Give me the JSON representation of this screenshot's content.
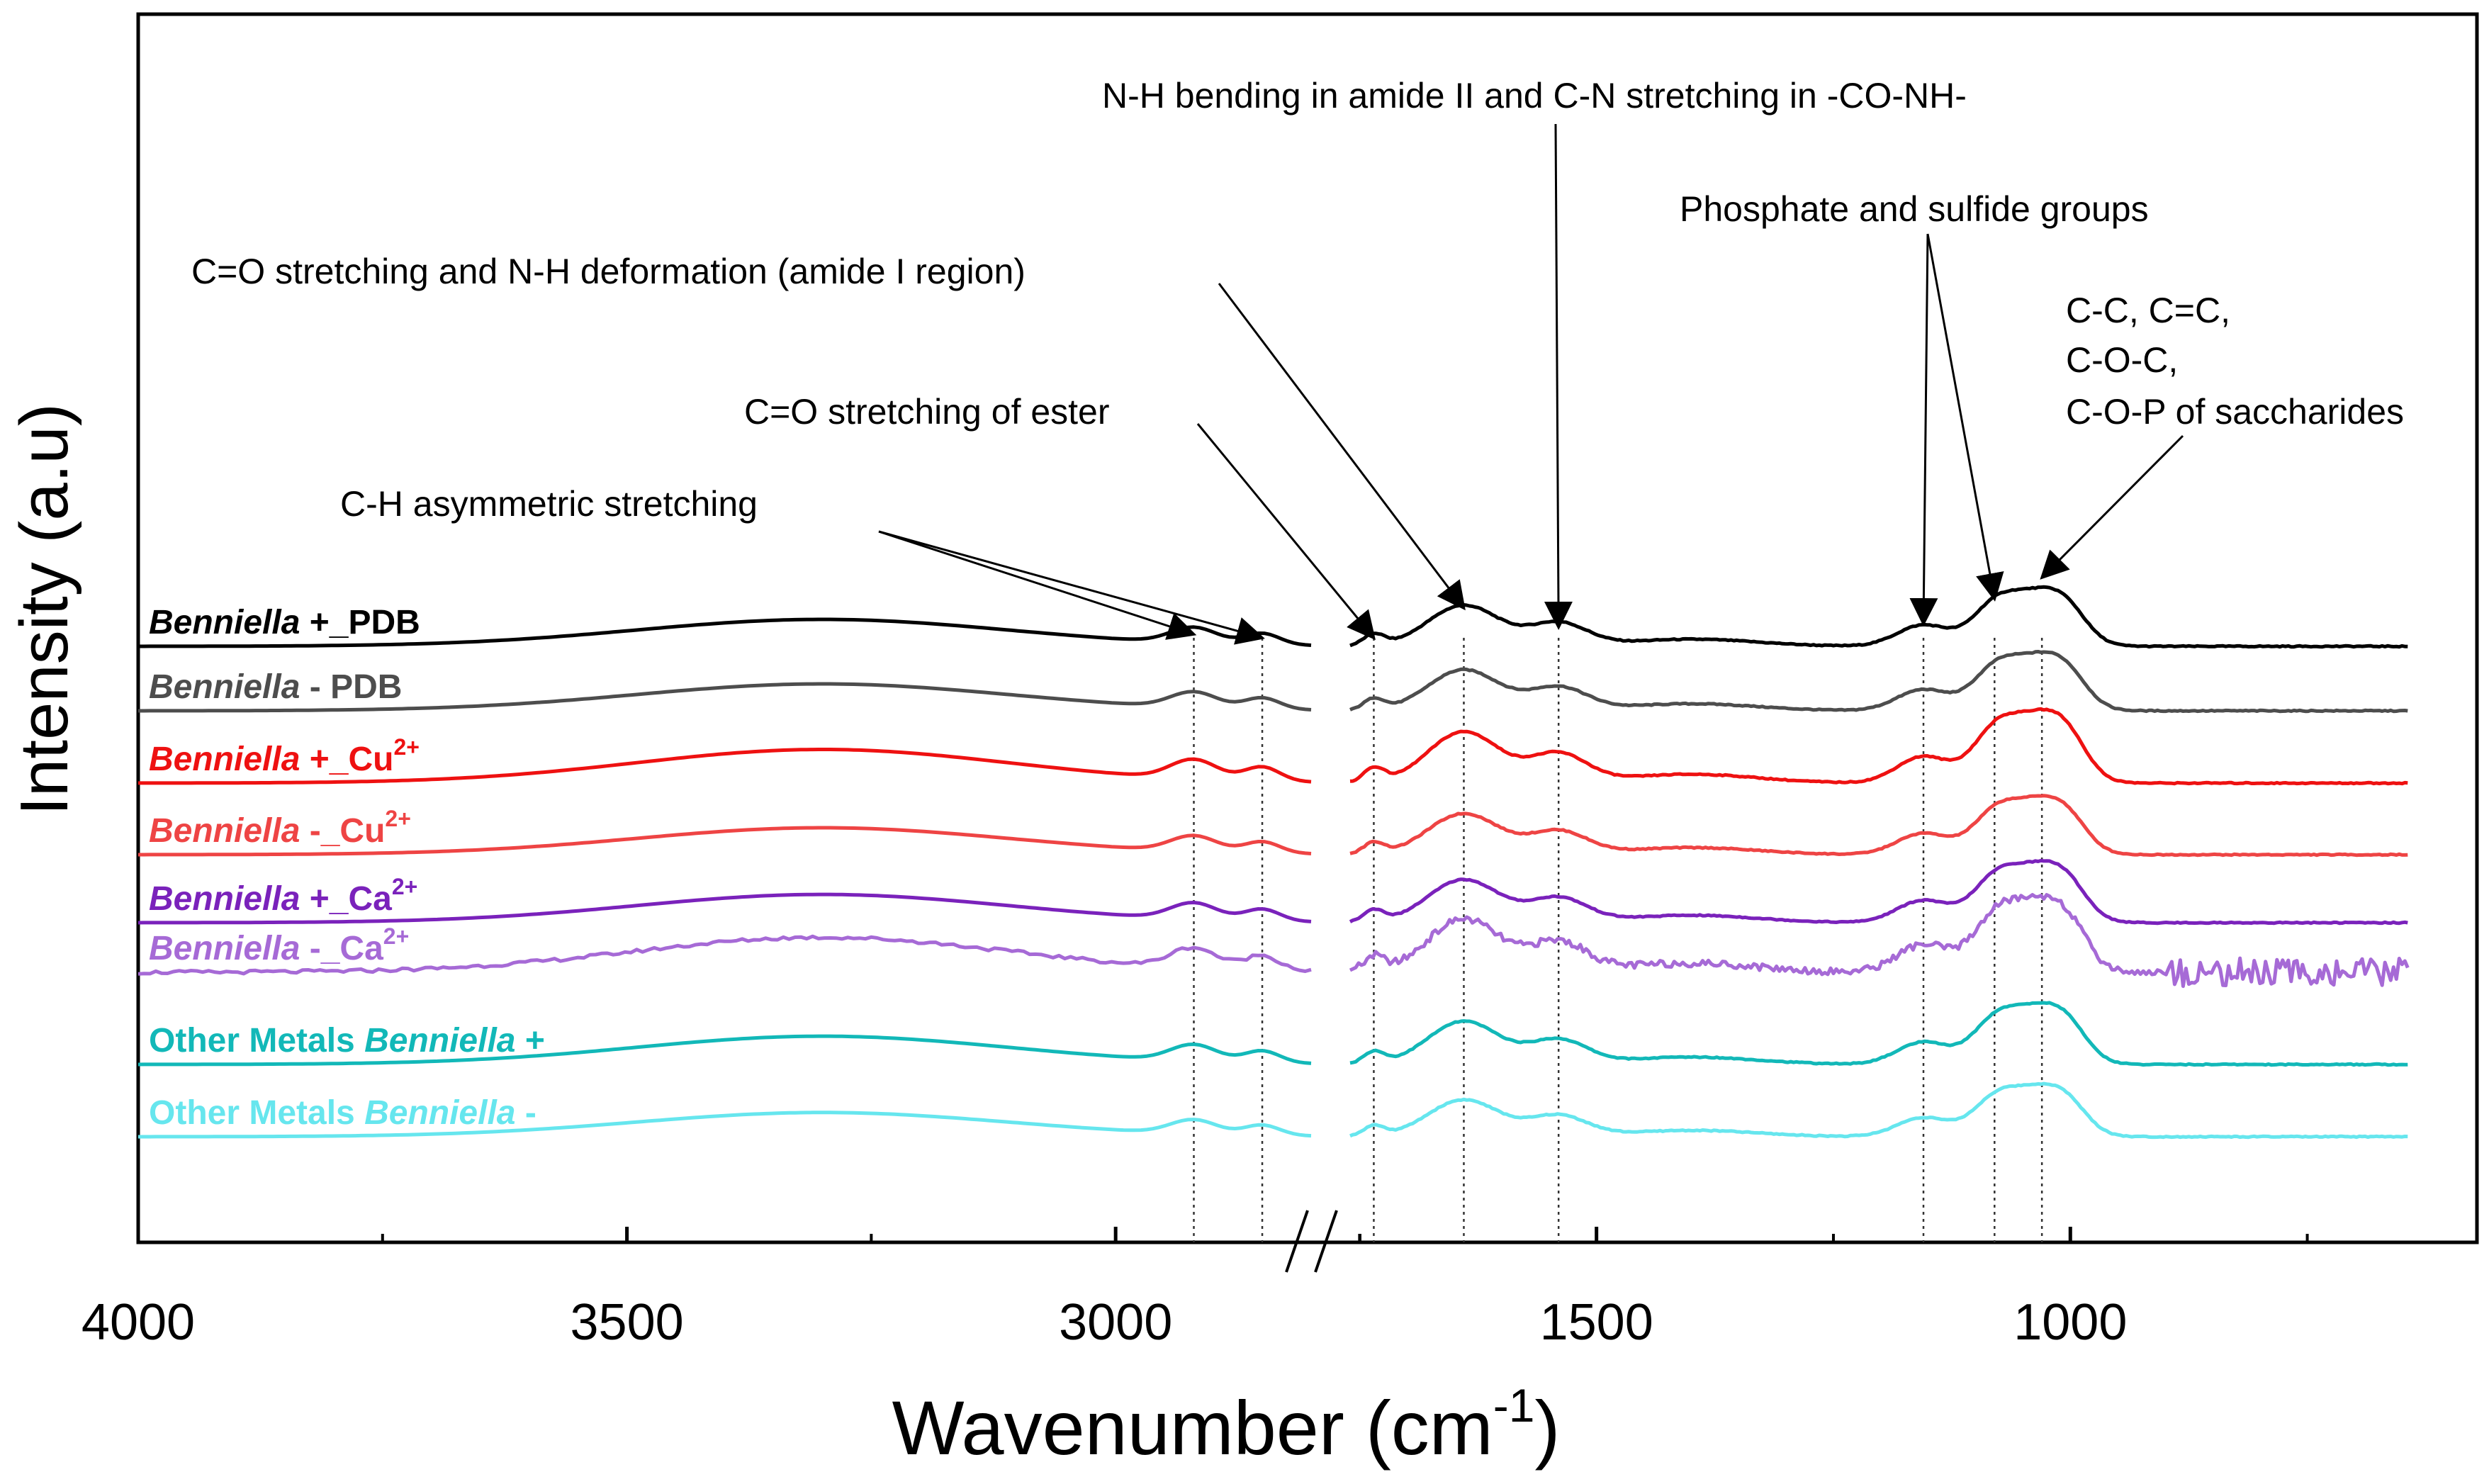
{
  "chart_data": {
    "type": "line",
    "title": "",
    "xlabel": "Wavenumber (cm",
    "xlabel_sup": "-1",
    "xlabel_close": ")",
    "ylabel": "Intensity (a.u)",
    "x_segments": [
      {
        "range": [
          4000,
          2800
        ],
        "ticks": [
          4000,
          3500,
          3000
        ],
        "minor_ticks": [
          3750,
          3250,
          2750
        ]
      },
      {
        "range": [
          1760,
          642
        ],
        "ticks": [
          1500,
          1000
        ],
        "minor_ticks": [
          1750,
          1250,
          750
        ]
      }
    ],
    "tick_labels": [
      "4000",
      "3500",
      "3000",
      "1500",
      "1000"
    ],
    "axis_break": "//",
    "ref_lines": [
      2920,
      2850,
      1735,
      1640,
      1540,
      1155,
      1080,
      1030
    ],
    "annotations": [
      {
        "text": "C-H asymmetric stretching",
        "targets": [
          2920,
          2850
        ]
      },
      {
        "text": "C=O stretching of ester",
        "targets": [
          1735
        ]
      },
      {
        "text": "C=O stretching and N-H deformation (amide I region)",
        "targets": [
          1640
        ]
      },
      {
        "text": "N-H bending in amide II and C-N stretching in -CO-NH-",
        "targets": [
          1540
        ]
      },
      {
        "text": "Phosphate and sulfide groups",
        "targets": [
          1155,
          1080
        ]
      },
      {
        "text": "C-C, C=C,",
        "targets": []
      },
      {
        "text": "C-O-C,",
        "targets": []
      },
      {
        "text": "C-O-P of saccharides",
        "targets": [
          1030
        ]
      }
    ],
    "series": [
      {
        "name": "Benniella +_PDB",
        "italic": "Benniella",
        "rest": " +_PDB",
        "sup": "",
        "color": "#000000",
        "amp": 1.0,
        "noise": 0
      },
      {
        "name": "Benniella - PDB",
        "italic": "Benniella",
        "rest": " -  PDB",
        "sup": "",
        "color": "#4d4d4d",
        "amp": 1.0,
        "noise": 0
      },
      {
        "name": "Benniella +_Cu2+",
        "italic": "Benniella",
        "rest": " +_Cu",
        "sup": "2+",
        "color": "#ee1111",
        "amp": 1.25,
        "noise": 0
      },
      {
        "name": "Benniella -_Cu2+",
        "italic": "Benniella",
        "rest": " -_Cu",
        "sup": "2+",
        "color": "#ee4444",
        "amp": 1.0,
        "noise": 0
      },
      {
        "name": "Benniella +_Ca2+",
        "italic": "Benniella",
        "rest": " +_Ca",
        "sup": "2+",
        "color": "#7a22bb",
        "amp": 1.05,
        "noise": 0
      },
      {
        "name": "Benniella -_Ca2+",
        "italic": "Benniella",
        "rest": " -_Ca",
        "sup": "2+",
        "color": "#a66ad6",
        "amp": 1.3,
        "noise": 1
      },
      {
        "name": "Other Metals Benniella +",
        "pre": "Other Metals ",
        "italic": "Benniella",
        "rest": " +",
        "sup": "",
        "color": "#12b8b8",
        "amp": 1.05,
        "noise": 0
      },
      {
        "name": "Other Metals Benniella -",
        "pre": "Other Metals ",
        "italic": "Benniella",
        "rest": "  -",
        "sup": "",
        "color": "#66e6ee",
        "amp": 0.9,
        "noise": 0
      }
    ]
  }
}
